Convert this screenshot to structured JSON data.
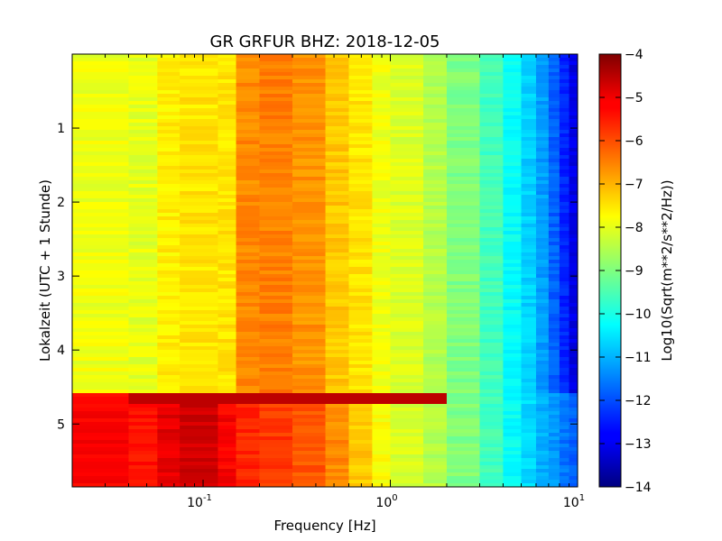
{
  "chart_data": {
    "type": "heatmap",
    "title": "GR GRFUR BHZ: 2018-12-05",
    "xlabel": "Frequency [Hz]",
    "ylabel": "Lokalzeit (UTC + 1 Stunde)",
    "x_scale": "log",
    "xlim": [
      0.02,
      10
    ],
    "ylim": [
      5.85,
      0.0
    ],
    "x_ticks": [
      {
        "value": 0.1,
        "base": "10",
        "exp": "-1"
      },
      {
        "value": 1,
        "base": "10",
        "exp": "0"
      },
      {
        "value": 10,
        "base": "10",
        "exp": "1"
      }
    ],
    "y_ticks": [
      {
        "value": 1,
        "label": "1"
      },
      {
        "value": 2,
        "label": "2"
      },
      {
        "value": 3,
        "label": "3"
      },
      {
        "value": 4,
        "label": "4"
      },
      {
        "value": 5,
        "label": "5"
      }
    ],
    "colorbar": {
      "label": "Log10(Sqrt(m**2/s**2/Hz))",
      "colormap": "jet",
      "range": [
        -14,
        -4
      ],
      "ticks": [
        {
          "value": -4,
          "label": "−4"
        },
        {
          "value": -5,
          "label": "−5"
        },
        {
          "value": -6,
          "label": "−6"
        },
        {
          "value": -7,
          "label": "−7"
        },
        {
          "value": -8,
          "label": "−8"
        },
        {
          "value": -9,
          "label": "−9"
        },
        {
          "value": -10,
          "label": "−10"
        },
        {
          "value": -11,
          "label": "−11"
        },
        {
          "value": -12,
          "label": "−12"
        },
        {
          "value": -13,
          "label": "−13"
        },
        {
          "value": -14,
          "label": "−14"
        }
      ]
    },
    "frequency_bins_hz": [
      0.02,
      0.04,
      0.057,
      0.075,
      0.12,
      0.15,
      0.2,
      0.3,
      0.45,
      0.6,
      0.8,
      1.0,
      1.5,
      2.0,
      3.0,
      4.0,
      5.0,
      6.0,
      7.0,
      8.0,
      9.0,
      10.0
    ],
    "time_bins": [
      0.0,
      4.6,
      5.85
    ],
    "values": [
      [
        -7.9,
        -8.0,
        -7.6,
        -7.5,
        -7.5,
        -6.6,
        -6.5,
        -6.7,
        -7.2,
        -7.5,
        -7.9,
        -8.1,
        -8.5,
        -9.0,
        -9.6,
        -10.2,
        -10.7,
        -11.2,
        -11.8,
        -12.4,
        -13.0,
        -13.8
      ],
      [
        -5.2,
        -5.4,
        -5.0,
        -4.8,
        -5.2,
        -5.6,
        -5.8,
        -6.1,
        -6.6,
        -7.2,
        -7.8,
        -8.1,
        -8.5,
        -9.0,
        -9.6,
        -10.2,
        -10.6,
        -11.0,
        -11.3,
        -11.6,
        -11.8,
        -11.8
      ]
    ],
    "event_band": {
      "time": 4.65,
      "freq_range": [
        0.04,
        2.0
      ],
      "value": -4.6
    }
  }
}
